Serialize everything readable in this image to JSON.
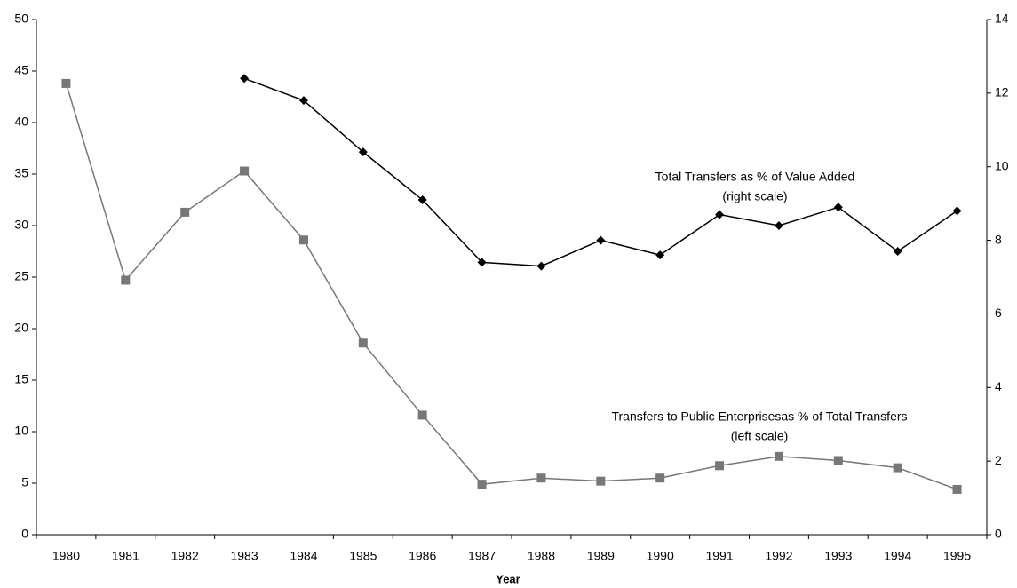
{
  "chart_data": {
    "type": "line",
    "categories": [
      "1980",
      "1981",
      "1982",
      "1983",
      "1984",
      "1985",
      "1986",
      "1987",
      "1988",
      "1989",
      "1990",
      "1991",
      "1992",
      "1993",
      "1994",
      "1995"
    ],
    "x_label": "Year",
    "series": [
      {
        "name": "Transfers to Public Enterprisesas % of Total Transfers",
        "color": "#777777",
        "marker": "square",
        "values": [
          43.8,
          24.7,
          31.3,
          35.3,
          28.6,
          18.6,
          11.6,
          4.9,
          5.5,
          5.2,
          5.5,
          6.7,
          7.6,
          7.2,
          6.5,
          4.4
        ]
      },
      {
        "name": "Total Transfers as % of Value Added",
        "color": "#000000",
        "marker": "diamond",
        "axis": "y2",
        "values": [
          null,
          null,
          null,
          12.4,
          11.8,
          10.4,
          9.1,
          7.4,
          7.3,
          8.0,
          7.6,
          8.7,
          8.4,
          8.9,
          7.7,
          8.8
        ]
      }
    ],
    "annotations": [
      "(left scale)",
      "(right scale)"
    ],
    "ylim": [
      0,
      50
    ],
    "yticks": [
      0,
      5,
      10,
      15,
      20,
      25,
      30,
      35,
      40,
      45,
      50
    ],
    "y2lim": [
      0,
      14
    ],
    "y2ticks": [
      0,
      2,
      4,
      6,
      8,
      10,
      12,
      14
    ],
    "grid": false
  }
}
